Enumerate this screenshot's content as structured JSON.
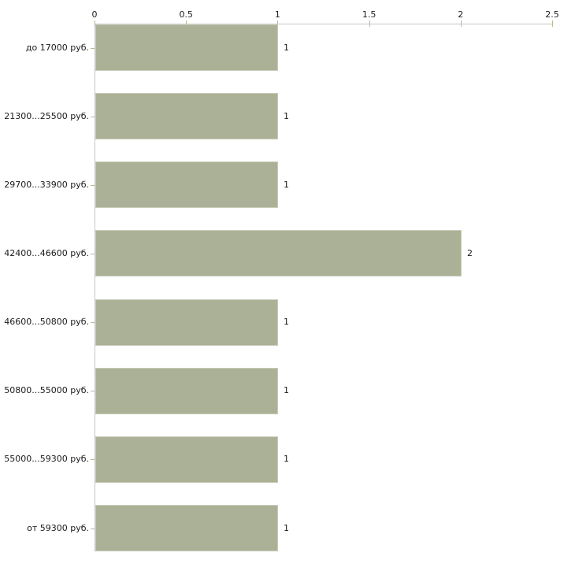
{
  "chart_data": {
    "type": "bar",
    "orientation": "horizontal",
    "title": "",
    "xlabel": "",
    "ylabel": "",
    "grid": false,
    "legend": false,
    "categories": [
      "до 17000 руб.",
      "21300...25500 руб.",
      "29700...33900 руб.",
      "42400...46600 руб.",
      "46600...50800 руб.",
      "50800...55000 руб.",
      "55000...59300 руб.",
      "от 59300 руб."
    ],
    "values": [
      1,
      1,
      1,
      2,
      1,
      1,
      1,
      1
    ],
    "value_labels": [
      "1",
      "1",
      "1",
      "2",
      "1",
      "1",
      "1",
      "1"
    ],
    "x_axis": {
      "position": "top",
      "min": 0,
      "max": 2.5,
      "ticks": [
        0,
        0.5,
        1,
        1.5,
        2,
        2.5
      ],
      "tick_labels": [
        "0",
        "0.5",
        "1",
        "1.5",
        "2",
        "2.5"
      ]
    }
  },
  "colors": {
    "background": "#ffffff",
    "bar_fill": "#abb196",
    "bar_edge": "#c9ccba",
    "axis_line": "#c6c6c6",
    "tick_mark": "#b9b99a",
    "text": "#1a1a1a"
  }
}
